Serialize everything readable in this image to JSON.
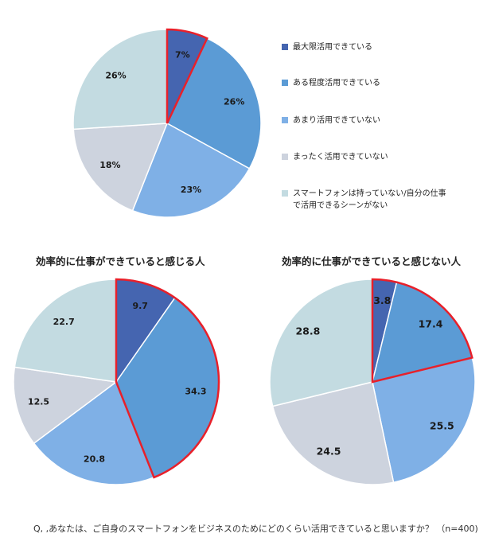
{
  "chart_data": [
    {
      "type": "pie",
      "title": "",
      "categories": [
        "最大限活用できている",
        "ある程度活用できている",
        "あまり活用できていない",
        "まったく活用できていない",
        "スマートフォンは持っていない/自分の仕事で活用できるシーンがない"
      ],
      "values": [
        7,
        26,
        23,
        18,
        26
      ],
      "labels": [
        "7%",
        "26%",
        "23%",
        "18%",
        "26%"
      ],
      "highlighted": [
        0
      ]
    },
    {
      "type": "pie",
      "title": "効率的に仕事ができていると感じる人",
      "categories": [
        "最大限活用できている",
        "ある程度活用できている",
        "あまり活用できていない",
        "まったく活用できていない",
        "スマートフォンは持っていない/自分の仕事で活用できるシーンがない"
      ],
      "values": [
        9.7,
        34.3,
        20.8,
        12.5,
        22.7
      ],
      "labels": [
        "9.7",
        "34.3",
        "20.8",
        "12.5",
        "22.7"
      ],
      "highlighted": [
        0,
        1
      ]
    },
    {
      "type": "pie",
      "title": "効率的に仕事ができていると感じない人",
      "categories": [
        "最大限活用できている",
        "ある程度活用できている",
        "あまり活用できていない",
        "まったく活用できていない",
        "スマートフォンは持っていない/自分の仕事で活用できるシーンがない"
      ],
      "values": [
        3.8,
        17.4,
        25.5,
        24.5,
        28.8
      ],
      "labels": [
        "3.8",
        "17.4",
        "25.5",
        "24.5",
        "28.8"
      ],
      "highlighted": [
        0,
        1
      ]
    }
  ],
  "legend": [
    {
      "label": "最大限活用できている",
      "color": "#4565b0"
    },
    {
      "label": "ある程度活用できている",
      "color": "#5b9bd5"
    },
    {
      "label": "あまり活用できていない",
      "color": "#7fb0e6"
    },
    {
      "label": "まったく活用できていない",
      "color": "#cdd3de"
    },
    {
      "label": "スマートフォンは持っていない/自分の仕事\nで活用できるシーンがない",
      "color": "#c3dbe1"
    }
  ],
  "highlight_color": "#e8202a",
  "footnote": "Q, ,あなたは、ご自身のスマートフォンをビジネスのためにどのくらい活用できていると思いますか？ （n=400)"
}
